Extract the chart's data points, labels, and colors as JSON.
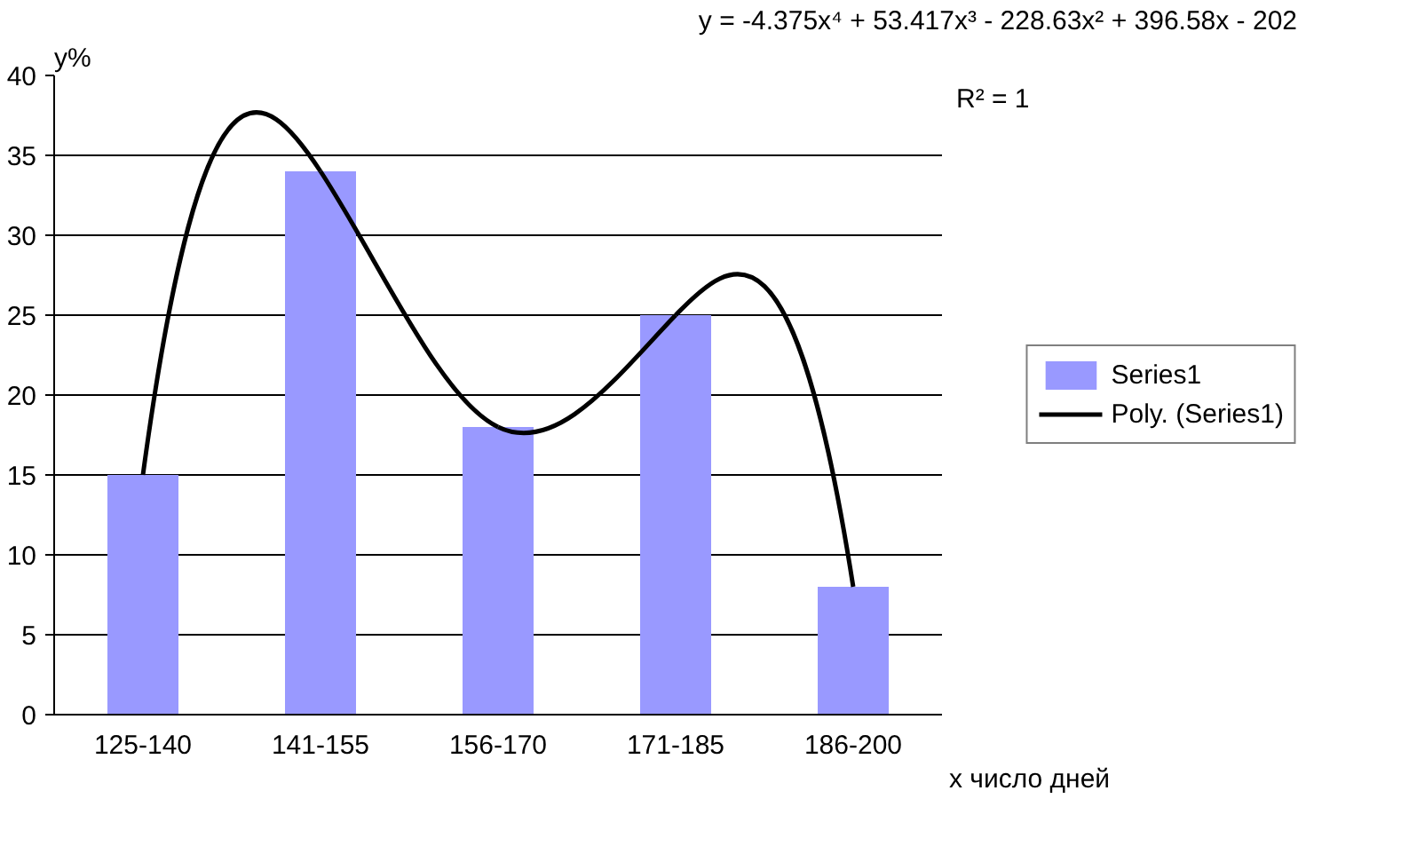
{
  "chart_data": {
    "type": "bar",
    "categories": [
      "125-140",
      "141-155",
      "156-170",
      "171-185",
      "186-200"
    ],
    "series": [
      {
        "name": "Series1",
        "color": "#9999ff",
        "values": [
          15,
          34,
          18,
          25,
          8
        ]
      },
      {
        "name": "Poly. (Series1)",
        "type": "line",
        "color": "#000000",
        "values": [
          15,
          34,
          18,
          25,
          8
        ]
      }
    ],
    "xlabel": "x число дней",
    "ylabel": "y%",
    "annotations": [
      "y = -4.375x⁴ + 53.417x³ - 228.63x² + 396.58x - 202",
      "R² = 1"
    ],
    "ylim": [
      0,
      40
    ],
    "yticks": [
      0,
      5,
      10,
      15,
      20,
      25,
      30,
      35,
      40
    ],
    "grid": "y",
    "legend": "right",
    "line_style": "solid",
    "marker": "none"
  }
}
